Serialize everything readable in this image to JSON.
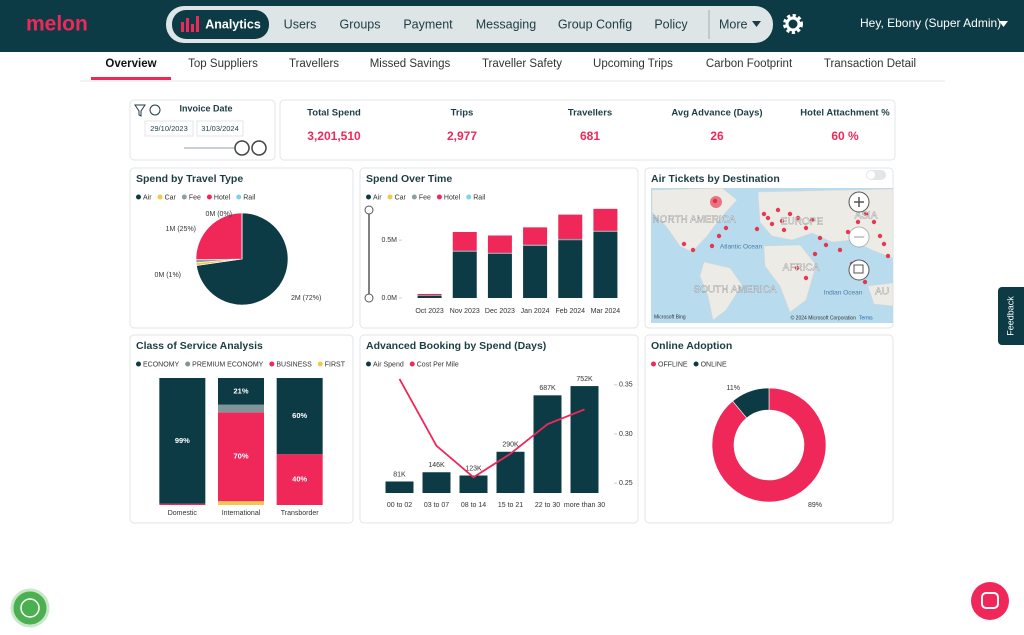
{
  "nav": {
    "logo": "melon",
    "items": [
      "Analytics",
      "Users",
      "Groups",
      "Payment",
      "Messaging",
      "Group Config",
      "Policy"
    ],
    "more": "More",
    "user": "Hey, Ebony (Super Admin)"
  },
  "tabs": [
    "Overview",
    "Top Suppliers",
    "Travellers",
    "Missed Savings",
    "Traveller Safety",
    "Upcoming Trips",
    "Carbon Footprint",
    "Transaction Detail"
  ],
  "filter": {
    "label": "Invoice Date",
    "start": "29/10/2023",
    "end": "31/03/2024"
  },
  "kpis": [
    {
      "label": "Total Spend",
      "value": "3,201,510"
    },
    {
      "label": "Trips",
      "value": "2,977"
    },
    {
      "label": "Travellers",
      "value": "681"
    },
    {
      "label": "Avg Advance (Days)",
      "value": "26"
    },
    {
      "label": "Hotel Attachment %",
      "value": "60 %"
    }
  ],
  "feedback": "Feedback",
  "chart_data": [
    {
      "type": "pie",
      "title": "Spend by Travel Type",
      "categories": [
        "Air",
        "Car",
        "Fee",
        "Hotel",
        "Rail"
      ],
      "colors": [
        "#0d3b45",
        "#f2c94c",
        "#8aa0a3",
        "#f0285a",
        "#7fd3e6"
      ],
      "values": [
        72,
        1,
        1,
        25,
        0
      ],
      "value_labels": [
        "2M (72%)",
        null,
        "0M (1%)",
        "1M (25%)",
        "0M (0%)"
      ]
    },
    {
      "type": "bar",
      "stacked": true,
      "title": "Spend Over Time",
      "categories": [
        "Oct 2023",
        "Nov 2023",
        "Dec 2023",
        "Jan 2024",
        "Feb 2024",
        "Mar 2024"
      ],
      "series": [
        {
          "name": "Air",
          "color": "#0d3b45",
          "values": [
            0.02,
            0.4,
            0.38,
            0.45,
            0.5,
            0.57
          ]
        },
        {
          "name": "Car",
          "color": "#f2c94c",
          "values": [
            0,
            0,
            0,
            0,
            0,
            0
          ]
        },
        {
          "name": "Fee",
          "color": "#8aa0a3",
          "values": [
            0.005,
            0.01,
            0.01,
            0.01,
            0.01,
            0.01
          ]
        },
        {
          "name": "Hotel",
          "color": "#f0285a",
          "values": [
            0.01,
            0.16,
            0.15,
            0.15,
            0.21,
            0.19
          ]
        },
        {
          "name": "Rail",
          "color": "#7fd3e6",
          "values": [
            0,
            0,
            0,
            0,
            0,
            0
          ]
        }
      ],
      "ylim": [
        0,
        0.76
      ],
      "yticks": [
        {
          "value": 0,
          "label": "0.0M"
        },
        {
          "value": 0.5,
          "label": "0.5M"
        }
      ]
    },
    {
      "type": "map",
      "title": "Air Tickets by Destination",
      "labels": [
        "NORTH AMERICA",
        "EUROPE",
        "ASIA",
        "AFRICA",
        "SOUTH AMERICA",
        "Atlantic Ocean",
        "Indian Ocean",
        "AU"
      ],
      "brand": "Microsoft Bing",
      "attribution": "© 2024 Microsoft Corporation",
      "terms": "Terms"
    },
    {
      "type": "bar",
      "stacked": true,
      "title": "Class of Service Analysis",
      "categories": [
        "Domestic",
        "International",
        "Transborder"
      ],
      "series": [
        {
          "name": "ECONOMY",
          "color": "#0d3b45",
          "values": [
            99,
            21,
            60
          ],
          "value_labels": [
            "99%",
            "21%",
            "60%"
          ]
        },
        {
          "name": "PREMIUM ECONOMY",
          "color": "#7f9598",
          "values": [
            0,
            6,
            0
          ]
        },
        {
          "name": "BUSINESS",
          "color": "#f0285a",
          "values": [
            1,
            70,
            40
          ],
          "value_labels": [
            null,
            "70%",
            "40%"
          ]
        },
        {
          "name": "FIRST",
          "color": "#f2c94c",
          "values": [
            0,
            3,
            0
          ]
        }
      ],
      "ylim": [
        0,
        100
      ]
    },
    {
      "type": "bar",
      "title": "Advanced Booking by Spend (Days)",
      "categories": [
        "00 to 02",
        "03 to 07",
        "08 to 14",
        "15 to 21",
        "22 to 30",
        "more than 30"
      ],
      "series": [
        {
          "name": "Air Spend",
          "color": "#0d3b45",
          "values": [
            81000,
            146000,
            123000,
            290000,
            687000,
            752000
          ],
          "value_labels": [
            "81K",
            "146K",
            "123K",
            "290K",
            "687K",
            "752K"
          ]
        },
        {
          "name": "Cost Per Mile",
          "color": "#f0285a",
          "type": "line",
          "axis": "y2",
          "values": [
            0.356,
            0.288,
            0.256,
            0.28,
            0.31,
            0.325
          ]
        }
      ],
      "ylim": [
        0,
        830000
      ],
      "y2lim": [
        0.24,
        0.36
      ],
      "y2ticks": [
        0.25,
        {
          "value": 0.3,
          "label": "0.30"
        },
        0.35
      ]
    },
    {
      "type": "pie",
      "donut": true,
      "title": "Online Adoption",
      "categories": [
        "OFFLINE",
        "ONLINE"
      ],
      "colors": [
        "#f0285a",
        "#0d3b45"
      ],
      "values": [
        89,
        11
      ],
      "value_labels": [
        "89%",
        "11%"
      ]
    }
  ]
}
